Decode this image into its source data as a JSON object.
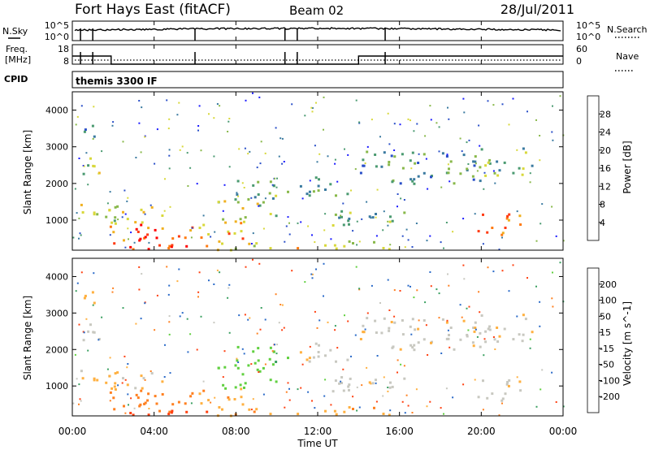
{
  "header": {
    "title": "Fort Hays East (fitACF)",
    "beam": "Beam 02",
    "date": "28/Jul/2011"
  },
  "summary_panels": {
    "nsky_label": "N.Sky",
    "nsky_ticks": [
      "10^5",
      "10^0"
    ],
    "nsearch_label": "N.Search",
    "nsearch_ticks": [
      "10^5",
      "10^0"
    ],
    "freq_label": [
      "Freq.",
      "[MHz]"
    ],
    "freq_ticks": [
      "18",
      "8"
    ],
    "nave_label": "Nave",
    "nave_ticks": [
      "60",
      "0"
    ],
    "cpid_label": "CPID",
    "cpid_text": "themis 3300 IF"
  },
  "axes": {
    "ylabel": "Slant Range [km]",
    "xlabel": "Time UT",
    "yticks": [
      "1000",
      "2000",
      "3000",
      "4000"
    ],
    "xticks": [
      "00:00",
      "04:00",
      "08:00",
      "12:00",
      "16:00",
      "20:00",
      "00:00"
    ]
  },
  "power_scale": {
    "label": "Power [dB]",
    "ticks": [
      "4",
      "8",
      "12",
      "16",
      "20",
      "24",
      "28"
    ],
    "colors": [
      "#1a1aff",
      "#2a4fc8",
      "#3a7aa0",
      "#4a9a70",
      "#88b84a",
      "#d8d83a",
      "#f0b020",
      "#ff7a10",
      "#ff3a10",
      "#ff0000"
    ]
  },
  "velocity_scale": {
    "label": "Velocity [m s^-1]",
    "ticks": [
      "200",
      "100",
      "50",
      "15",
      "-15",
      "-50",
      "-100",
      "-200"
    ],
    "colors": [
      "#2020d0",
      "#2a6ac8",
      "#3aa060",
      "#60d040",
      "#c8c8c0",
      "#ffb040",
      "#ff8020",
      "#ff4010",
      "#ff0000"
    ]
  },
  "chart_data": {
    "type": "heatmap",
    "x_range_hours_ut": [
      0,
      24
    ],
    "y_range_km": [
      180,
      4500
    ],
    "power_db_range": [
      0,
      30
    ],
    "velocity_range": [
      -200,
      200
    ],
    "echo_regions": [
      {
        "t0": 0.2,
        "t1": 1.3,
        "r0": 2200,
        "r1": 2800,
        "power": 14,
        "vel": -5
      },
      {
        "t0": 0.3,
        "t1": 1.2,
        "r0": 3300,
        "r1": 3800,
        "power": 8,
        "vel": -30
      },
      {
        "t0": 0.2,
        "t1": 4.5,
        "r0": 900,
        "r1": 1500,
        "power": 16,
        "vel": -20
      },
      {
        "t0": 1.5,
        "t1": 6.0,
        "r0": 300,
        "r1": 900,
        "power": 24,
        "vel": -70
      },
      {
        "t0": 2.0,
        "t1": 7.0,
        "r0": 200,
        "r1": 400,
        "power": 28,
        "vel": -120
      },
      {
        "t0": 6.0,
        "t1": 8.5,
        "r0": 500,
        "r1": 1000,
        "power": 20,
        "vel": -40
      },
      {
        "t0": 7.0,
        "t1": 10.0,
        "r0": 900,
        "r1": 1600,
        "power": 14,
        "vel": 30
      },
      {
        "t0": 8.0,
        "t1": 10.5,
        "r0": 1500,
        "r1": 2100,
        "power": 12,
        "vel": 40
      },
      {
        "t0": 7.0,
        "t1": 16.0,
        "r0": 200,
        "r1": 450,
        "power": 18,
        "vel": -40
      },
      {
        "t0": 11.0,
        "t1": 13.5,
        "r0": 1700,
        "r1": 2300,
        "power": 10,
        "vel": -10
      },
      {
        "t0": 12.5,
        "t1": 16.5,
        "r0": 800,
        "r1": 1300,
        "power": 12,
        "vel": -5
      },
      {
        "t0": 14.0,
        "t1": 20.0,
        "r0": 2000,
        "r1": 2900,
        "power": 10,
        "vel": -5
      },
      {
        "t0": 19.0,
        "t1": 22.5,
        "r0": 2200,
        "r1": 3000,
        "power": 12,
        "vel": -8
      },
      {
        "t0": 19.5,
        "t1": 22.0,
        "r0": 600,
        "r1": 1200,
        "power": 22,
        "vel": -10
      }
    ],
    "frequency_mhz": [
      {
        "t0": 0.0,
        "t1": 1.9,
        "value": 13
      },
      {
        "t0": 1.9,
        "t1": 14.0,
        "value": 8
      },
      {
        "t0": 14.0,
        "t1": 24.0,
        "value": 13
      }
    ]
  }
}
